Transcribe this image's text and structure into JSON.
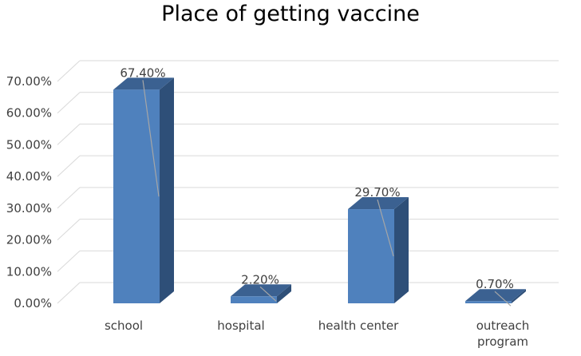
{
  "chart_data": {
    "type": "bar",
    "title": "Place of getting vaccine",
    "xlabel": "",
    "ylabel": "",
    "categories": [
      "school",
      "hospital",
      "health center",
      "outreach\nprogram"
    ],
    "values": [
      67.4,
      2.2,
      29.7,
      0.7
    ],
    "data_labels": [
      "67.40%",
      "2.20%",
      "29.70%",
      "0.70%"
    ],
    "ylim": [
      0,
      70
    ],
    "y_ticks": [
      0,
      10,
      20,
      30,
      40,
      50,
      60,
      70
    ],
    "y_tick_labels": [
      "0.00%",
      "10.00%",
      "20.00%",
      "30.00%",
      "40.00%",
      "50.00%",
      "60.00%",
      "70.00%"
    ],
    "grid": true,
    "legend": "none",
    "style": "3d-column",
    "colors": {
      "front": "#4f81bd",
      "top": "#3b6191",
      "side": "#2e4f78",
      "grid": "#d9d9d9",
      "leader": "#a6a6a6"
    }
  }
}
